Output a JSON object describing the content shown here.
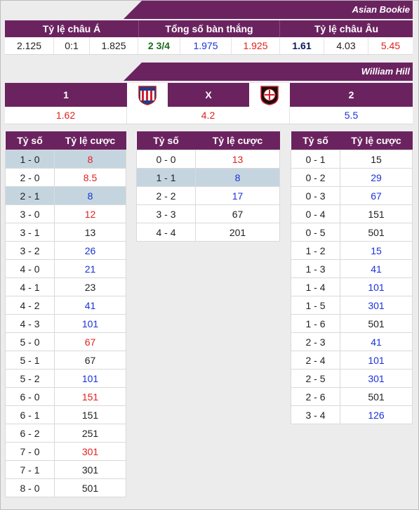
{
  "asian": {
    "title": "Asian Bookie",
    "headers": [
      "Tỷ lệ châu Á",
      "Tổng số bàn thắng",
      "Tỷ lệ châu Âu"
    ],
    "values": [
      "2.125",
      "0:1",
      "1.825",
      "2 3/4",
      "1.975",
      "1.925",
      "1.61",
      "4.03",
      "5.45"
    ]
  },
  "wh": {
    "title": "William Hill",
    "home": "1",
    "draw": "X",
    "away": "2",
    "home_val": "1.62",
    "draw_val": "4.2",
    "away_val": "5.5",
    "home_logo": "atletico-madrid-crest-icon",
    "away_logo": "bayer-leverkusen-crest-icon"
  },
  "headers": {
    "score": "Tỷ số",
    "odds": "Tỷ lệ cược"
  },
  "colors": {
    "brand": "#6b2360",
    "red": "#e0201e",
    "blue": "#1a31d9",
    "highlight": "#c5d5df"
  },
  "home_table": [
    {
      "s": "1 - 0",
      "o": "8",
      "c": "red",
      "h": true
    },
    {
      "s": "2 - 0",
      "o": "8.5",
      "c": "red",
      "h": false
    },
    {
      "s": "2 - 1",
      "o": "8",
      "c": "blue",
      "h": true
    },
    {
      "s": "3 - 0",
      "o": "12",
      "c": "red",
      "h": false
    },
    {
      "s": "3 - 1",
      "o": "13",
      "c": "dark",
      "h": false
    },
    {
      "s": "3 - 2",
      "o": "26",
      "c": "blue",
      "h": false
    },
    {
      "s": "4 - 0",
      "o": "21",
      "c": "blue",
      "h": false
    },
    {
      "s": "4 - 1",
      "o": "23",
      "c": "dark",
      "h": false
    },
    {
      "s": "4 - 2",
      "o": "41",
      "c": "blue",
      "h": false
    },
    {
      "s": "4 - 3",
      "o": "101",
      "c": "blue",
      "h": false
    },
    {
      "s": "5 - 0",
      "o": "67",
      "c": "red",
      "h": false
    },
    {
      "s": "5 - 1",
      "o": "67",
      "c": "dark",
      "h": false
    },
    {
      "s": "5 - 2",
      "o": "101",
      "c": "blue",
      "h": false
    },
    {
      "s": "6 - 0",
      "o": "151",
      "c": "red",
      "h": false
    },
    {
      "s": "6 - 1",
      "o": "151",
      "c": "dark",
      "h": false
    },
    {
      "s": "6 - 2",
      "o": "251",
      "c": "dark",
      "h": false
    },
    {
      "s": "7 - 0",
      "o": "301",
      "c": "red",
      "h": false
    },
    {
      "s": "7 - 1",
      "o": "301",
      "c": "dark",
      "h": false
    },
    {
      "s": "8 - 0",
      "o": "501",
      "c": "dark",
      "h": false
    }
  ],
  "draw_table": [
    {
      "s": "0 - 0",
      "o": "13",
      "c": "red",
      "h": false
    },
    {
      "s": "1 - 1",
      "o": "8",
      "c": "blue",
      "h": true
    },
    {
      "s": "2 - 2",
      "o": "17",
      "c": "blue",
      "h": false
    },
    {
      "s": "3 - 3",
      "o": "67",
      "c": "dark",
      "h": false
    },
    {
      "s": "4 - 4",
      "o": "201",
      "c": "dark",
      "h": false
    }
  ],
  "away_table": [
    {
      "s": "0 - 1",
      "o": "15",
      "c": "dark",
      "h": false
    },
    {
      "s": "0 - 2",
      "o": "29",
      "c": "blue",
      "h": false
    },
    {
      "s": "0 - 3",
      "o": "67",
      "c": "blue",
      "h": false
    },
    {
      "s": "0 - 4",
      "o": "151",
      "c": "dark",
      "h": false
    },
    {
      "s": "0 - 5",
      "o": "501",
      "c": "dark",
      "h": false
    },
    {
      "s": "1 - 2",
      "o": "15",
      "c": "blue",
      "h": false
    },
    {
      "s": "1 - 3",
      "o": "41",
      "c": "blue",
      "h": false
    },
    {
      "s": "1 - 4",
      "o": "101",
      "c": "blue",
      "h": false
    },
    {
      "s": "1 - 5",
      "o": "301",
      "c": "blue",
      "h": false
    },
    {
      "s": "1 - 6",
      "o": "501",
      "c": "dark",
      "h": false
    },
    {
      "s": "2 - 3",
      "o": "41",
      "c": "blue",
      "h": false
    },
    {
      "s": "2 - 4",
      "o": "101",
      "c": "blue",
      "h": false
    },
    {
      "s": "2 - 5",
      "o": "301",
      "c": "blue",
      "h": false
    },
    {
      "s": "2 - 6",
      "o": "501",
      "c": "dark",
      "h": false
    },
    {
      "s": "3 - 4",
      "o": "126",
      "c": "blue",
      "h": false
    }
  ]
}
